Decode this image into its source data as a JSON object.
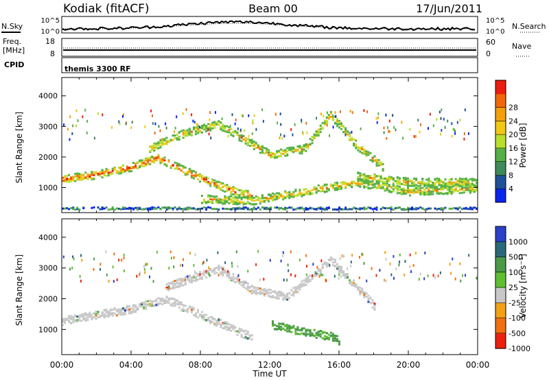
{
  "header": {
    "station": "Kodiak (fitACF)",
    "beam": "Beam 00",
    "date": "17/Jun/2011"
  },
  "noise_panel": {
    "left_label": "N.Sky",
    "right_label": "N.Search",
    "left_ticks": [
      "10^5",
      "10^0"
    ],
    "right_ticks": [
      "10^5",
      "10^0"
    ]
  },
  "freq_panel": {
    "left_label_1": "Freq.",
    "left_label_2": "[MHz]",
    "right_label": "Nave",
    "left_ticks": [
      "18",
      "8"
    ],
    "right_ticks": [
      "60",
      "0"
    ]
  },
  "cpid_panel": {
    "label": "CPID",
    "value": "themis 3300 RF"
  },
  "x_axis": {
    "label": "Time UT",
    "ticks": [
      "00:00",
      "04:00",
      "08:00",
      "12:00",
      "16:00",
      "20:00",
      "00:00"
    ]
  },
  "chart_data": [
    {
      "type": "heatmap",
      "quantity": "power",
      "ylabel": "Slant Range [km]",
      "yticks": [
        1000,
        2000,
        3000,
        4000
      ],
      "ylim": [
        180,
        4600
      ],
      "xlim": [
        0,
        24
      ],
      "colorbar": {
        "label": "Power [dB]",
        "ticks": [
          "4",
          "8",
          "12",
          "16",
          "20",
          "24",
          "28"
        ],
        "colors": [
          "#0a24f0",
          "#20509a",
          "#3f8a5a",
          "#55b046",
          "#b8e02a",
          "#f2c814",
          "#f59f0a",
          "#f26808",
          "#ee1c0e"
        ]
      },
      "features": [
        {
          "name": "main band",
          "path": [
            [
              0,
              1300
            ],
            [
              2,
              1450
            ],
            [
              4,
              1700
            ],
            [
              5.5,
              2000
            ],
            [
              7,
              1600
            ],
            [
              8.5,
              1200
            ],
            [
              10,
              900
            ],
            [
              11,
              750
            ]
          ],
          "level": "high"
        },
        {
          "name": "upper arc",
          "path": [
            [
              5,
              2300
            ],
            [
              7,
              2800
            ],
            [
              9,
              3100
            ],
            [
              10.5,
              2600
            ],
            [
              12,
              2100
            ],
            [
              14,
              2300
            ],
            [
              15.5,
              3400
            ],
            [
              17,
              2400
            ],
            [
              18.5,
              1700
            ]
          ],
          "level": "mid"
        },
        {
          "name": "lower band",
          "path": [
            [
              8,
              650
            ],
            [
              11,
              600
            ],
            [
              13,
              800
            ],
            [
              15,
              1000
            ],
            [
              17,
              1200
            ],
            [
              20,
              900
            ],
            [
              24,
              1000
            ]
          ],
          "level": "mid"
        },
        {
          "name": "late band",
          "path": [
            [
              17,
              1400
            ],
            [
              20,
              1200
            ],
            [
              24,
              1200
            ]
          ],
          "level": "mid"
        },
        {
          "name": "ground band",
          "path": [
            [
              0,
              350
            ],
            [
              24,
              350
            ]
          ],
          "level": "low"
        }
      ]
    },
    {
      "type": "heatmap",
      "quantity": "velocity",
      "ylabel": "Slant Range [km]",
      "yticks": [
        1000,
        2000,
        3000,
        4000
      ],
      "ylim": [
        180,
        4600
      ],
      "xlim": [
        0,
        24
      ],
      "colorbar": {
        "label": "Velocity [m s^-1]",
        "ticks": [
          "1000",
          "500",
          "100",
          "25",
          "-25",
          "-100",
          "-500",
          "-1000"
        ],
        "colors": [
          "#2a40c8",
          "#2a6a78",
          "#4a9a48",
          "#5ec030",
          "#c8c8c8",
          "#f2a014",
          "#f26e0e",
          "#ee200c"
        ]
      },
      "features": [
        {
          "name": "grey main band",
          "path": [
            [
              0,
              1300
            ],
            [
              4,
              1700
            ],
            [
              6,
              2000
            ],
            [
              8,
              1500
            ],
            [
              10,
              1000
            ],
            [
              11,
              750
            ]
          ],
          "level": "grey"
        },
        {
          "name": "grey upper arc",
          "path": [
            [
              6,
              2400
            ],
            [
              9,
              3000
            ],
            [
              11,
              2300
            ],
            [
              13,
              2100
            ],
            [
              15.5,
              3300
            ],
            [
              18,
              1800
            ]
          ],
          "level": "grey"
        },
        {
          "name": "negative velocity patch",
          "path": [
            [
              12,
              1200
            ],
            [
              13.5,
              1000
            ],
            [
              15.5,
              800
            ],
            [
              16,
              650
            ]
          ],
          "level": "green"
        }
      ]
    }
  ]
}
